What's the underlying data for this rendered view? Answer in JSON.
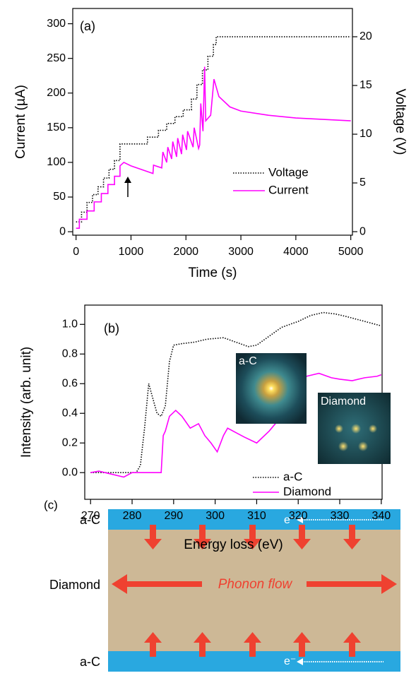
{
  "chart_data": [
    {
      "type": "line",
      "label": "(a)",
      "x_label": "Time (s)",
      "y_label": "Current (µA)",
      "y2_label": "Voltage (V)",
      "xlim": [
        -60,
        5030
      ],
      "xticks": [
        0,
        1000,
        2000,
        3000,
        4000,
        5000
      ],
      "ylim": [
        -5,
        322
      ],
      "yticks": [
        0,
        50,
        100,
        150,
        200,
        250,
        300
      ],
      "y2lim": [
        -0.36,
        22.9
      ],
      "y2ticks": [
        0,
        5,
        10,
        15,
        20
      ],
      "legend": "lower right",
      "series": [
        {
          "name": "Voltage",
          "color": "#000000",
          "dash": "dotted",
          "axis": "y2",
          "x": [
            0,
            100,
            100,
            200,
            200,
            300,
            300,
            400,
            400,
            500,
            500,
            600,
            600,
            700,
            700,
            800,
            800,
            1300,
            1300,
            1500,
            1500,
            1650,
            1650,
            1800,
            1800,
            1950,
            1950,
            2100,
            2100,
            2200,
            2200,
            2300,
            2300,
            2400,
            2400,
            2500,
            2500,
            2550,
            2550,
            5000
          ],
          "values": [
            1,
            1,
            2,
            2,
            3,
            3,
            3.8,
            3.8,
            4.6,
            4.6,
            5.5,
            5.5,
            6.4,
            6.4,
            7.3,
            7.3,
            9,
            9,
            9.7,
            9.7,
            10.4,
            10.4,
            11.1,
            11.1,
            11.8,
            11.8,
            12.5,
            12.5,
            13.6,
            13.6,
            15.1,
            15.1,
            16.6,
            16.6,
            18,
            18,
            19.2,
            19.2,
            20,
            20
          ]
        },
        {
          "name": "Current",
          "color": "#ff00ff",
          "dash": "solid",
          "axis": "y",
          "x": [
            0,
            60,
            60,
            200,
            200,
            330,
            330,
            460,
            460,
            580,
            580,
            700,
            700,
            800,
            800,
            870,
            1000,
            1400,
            1410,
            1560,
            1580,
            1650,
            1670,
            1740,
            1760,
            1830,
            1850,
            1920,
            1940,
            2010,
            2030,
            2130,
            2150,
            2230,
            2250,
            2270,
            2310,
            2340,
            2360,
            2450,
            2510,
            2600,
            2800,
            3000,
            3500,
            4000,
            4500,
            5000
          ],
          "values": [
            5,
            5,
            18,
            18,
            30,
            30,
            43,
            43,
            55,
            55,
            68,
            68,
            80,
            80,
            95,
            100,
            95,
            84,
            96,
            92,
            115,
            100,
            122,
            105,
            130,
            108,
            135,
            112,
            140,
            118,
            145,
            122,
            150,
            120,
            125,
            185,
            145,
            238,
            160,
            168,
            220,
            195,
            180,
            174,
            168,
            164,
            162,
            160
          ]
        }
      ]
    },
    {
      "type": "line",
      "label": "(b)",
      "x_label": "Energy loss (eV)",
      "y_label": "Intensity (arb. unit)",
      "xlim": [
        268.6,
        340.2
      ],
      "xticks": [
        270,
        280,
        290,
        300,
        310,
        320,
        330,
        340
      ],
      "ylim": [
        -0.18,
        1.13
      ],
      "yticks": [
        {
          "value": 0,
          "label": "0.0"
        },
        0.2,
        0.4,
        0.6,
        0.8,
        {
          "value": 1,
          "label": "1.0"
        }
      ],
      "legend": "lower right",
      "inset_labels": [
        "a-C",
        "Diamond"
      ],
      "series": [
        {
          "name": "a-C",
          "color": "#000000",
          "dash": "dotted",
          "axis": "y",
          "x": [
            270,
            275,
            281,
            282,
            283,
            284,
            285,
            286,
            287,
            288,
            289,
            290,
            292,
            295,
            298,
            302,
            305,
            308,
            310,
            313,
            316,
            320,
            323,
            326,
            329,
            332,
            336,
            340
          ],
          "values": [
            0,
            0,
            0,
            0.05,
            0.3,
            0.6,
            0.5,
            0.4,
            0.38,
            0.45,
            0.75,
            0.86,
            0.87,
            0.88,
            0.9,
            0.91,
            0.88,
            0.85,
            0.86,
            0.92,
            0.98,
            1.02,
            1.06,
            1.08,
            1.07,
            1.05,
            1.02,
            0.99
          ]
        },
        {
          "name": "Diamond",
          "color": "#ff00ff",
          "dash": "solid",
          "axis": "y",
          "x": [
            270,
            272,
            275,
            278,
            280,
            285,
            287,
            287.5,
            288,
            289,
            290.5,
            292,
            294,
            296,
            297.5,
            299,
            300.5,
            302,
            303,
            305,
            307,
            310,
            313,
            316,
            320,
            322,
            325,
            328,
            330,
            333,
            336,
            339,
            340
          ],
          "values": [
            0,
            0.01,
            -0.01,
            -0.03,
            0,
            0,
            0,
            0.25,
            0.28,
            0.38,
            0.42,
            0.38,
            0.3,
            0.33,
            0.25,
            0.2,
            0.14,
            0.25,
            0.3,
            0.27,
            0.24,
            0.2,
            0.28,
            0.38,
            0.55,
            0.65,
            0.67,
            0.64,
            0.63,
            0.62,
            0.64,
            0.65,
            0.66
          ]
        }
      ]
    }
  ],
  "diagram": {
    "label": "(c)",
    "layers": [
      "a-C",
      "Diamond",
      "a-C"
    ],
    "flow_label": "Phonon flow",
    "electron_label": "e⁻"
  }
}
